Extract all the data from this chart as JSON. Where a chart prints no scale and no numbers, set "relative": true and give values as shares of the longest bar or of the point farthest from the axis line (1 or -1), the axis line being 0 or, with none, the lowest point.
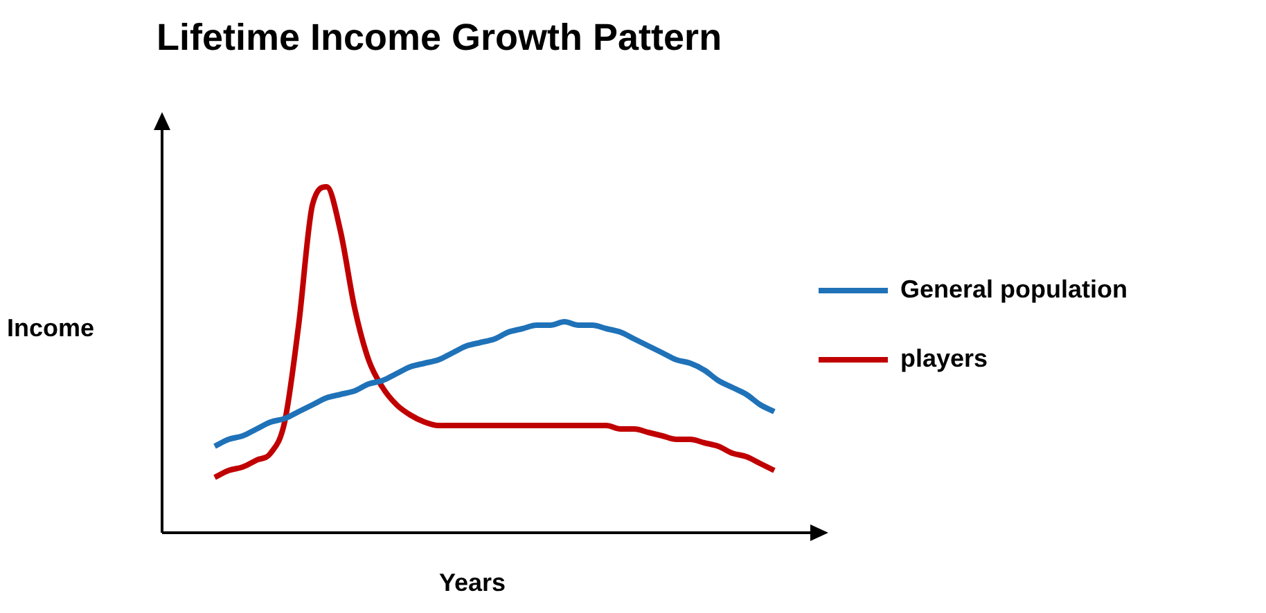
{
  "chart_data": {
    "type": "line",
    "title": "Lifetime Income Growth Pattern",
    "xlabel": "Years",
    "ylabel": "Income",
    "relative": true,
    "legend": "right",
    "marker": "none",
    "line_style": "solid",
    "categories": [
      null,
      null,
      null,
      null,
      null,
      null,
      null,
      null,
      null,
      null,
      null,
      null,
      null,
      null,
      null,
      null,
      null,
      null,
      null,
      null,
      null,
      null,
      null,
      null,
      null,
      null,
      null,
      null,
      null,
      null,
      null,
      null,
      null,
      null,
      null,
      null,
      null,
      null,
      null,
      null,
      null
    ],
    "series": [
      {
        "name": "General population",
        "color": "#1f72b8",
        "values": [
          0.25,
          0.27,
          0.28,
          0.3,
          0.32,
          0.33,
          0.35,
          0.37,
          0.39,
          0.4,
          0.41,
          0.43,
          0.44,
          0.46,
          0.48,
          0.49,
          0.5,
          0.52,
          0.54,
          0.55,
          0.56,
          0.58,
          0.59,
          0.6,
          0.6,
          0.61,
          0.6,
          0.6,
          0.59,
          0.58,
          0.56,
          0.54,
          0.52,
          0.5,
          0.49,
          0.47,
          0.44,
          0.42,
          0.4,
          0.37,
          0.35
        ]
      },
      {
        "name": "players",
        "color": "#c00000",
        "values": [
          0.16,
          0.18,
          0.19,
          0.21,
          0.23,
          0.32,
          0.6,
          0.95,
          1,
          0.87,
          0.65,
          0.5,
          0.42,
          0.37,
          0.34,
          0.32,
          0.31,
          0.31,
          0.31,
          0.31,
          0.31,
          0.31,
          0.31,
          0.31,
          0.31,
          0.31,
          0.31,
          0.31,
          0.31,
          0.3,
          0.3,
          0.29,
          0.28,
          0.27,
          0.27,
          0.26,
          0.25,
          0.23,
          0.22,
          0.2,
          0.18
        ]
      }
    ]
  }
}
